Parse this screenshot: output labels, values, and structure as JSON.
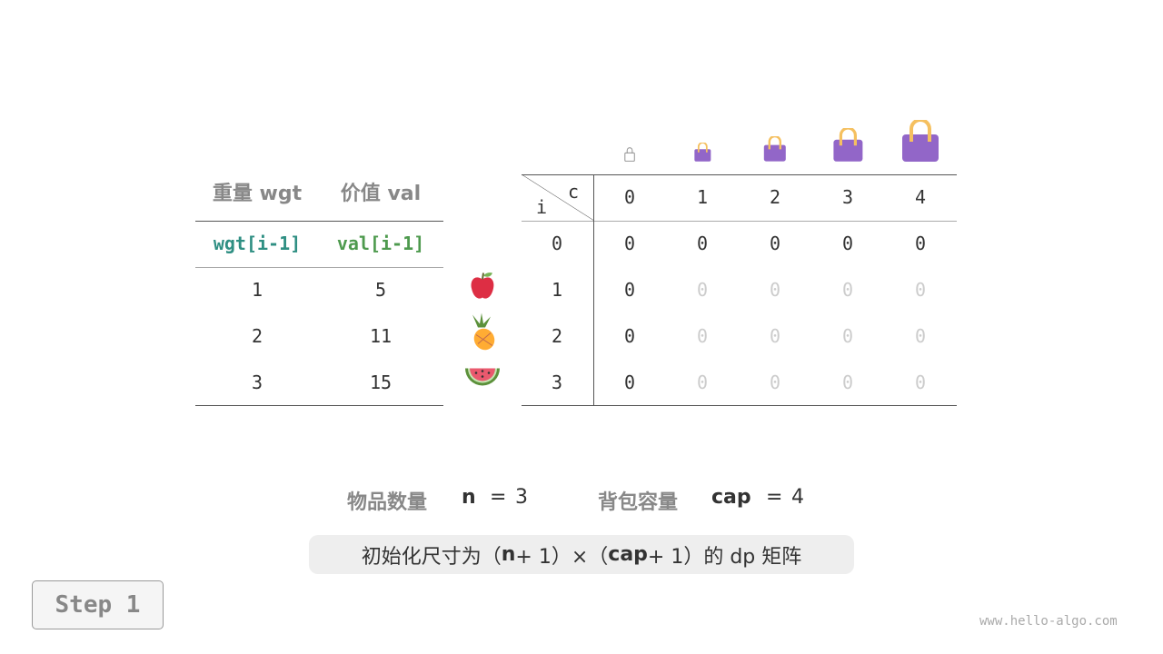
{
  "items_table": {
    "headers": [
      "重量 wgt",
      "价值 val"
    ],
    "subheaders": [
      "wgt[i-1]",
      "val[i-1]"
    ],
    "rows": [
      [
        "1",
        "5"
      ],
      [
        "2",
        "11"
      ],
      [
        "3",
        "15"
      ]
    ],
    "item_icons": [
      "apple-icon",
      "pineapple-icon",
      "watermelon-icon"
    ]
  },
  "dp_table": {
    "corner_col": "c",
    "corner_row": "i",
    "col_headers": [
      "0",
      "1",
      "2",
      "3",
      "4"
    ],
    "row_headers": [
      "0",
      "1",
      "2",
      "3"
    ],
    "cells": [
      [
        "0",
        "0",
        "0",
        "0",
        "0"
      ],
      [
        "0",
        "0",
        "0",
        "0",
        "0"
      ],
      [
        "0",
        "0",
        "0",
        "0",
        "0"
      ],
      [
        "0",
        "0",
        "0",
        "0",
        "0"
      ]
    ],
    "bag_icons": [
      "bag-icon-empty",
      "bag-icon",
      "bag-icon",
      "bag-icon",
      "bag-icon"
    ]
  },
  "summary": {
    "n_label": "物品数量",
    "n_var": "n",
    "n_eq": "=",
    "n_val": "3",
    "cap_label": "背包容量",
    "cap_var": "cap",
    "cap_eq": "=",
    "cap_val": "4"
  },
  "note": {
    "p1": "初始化尺寸为（",
    "n": "n",
    "p2": " + 1）×（",
    "cap": "cap",
    "p3": " + 1）的 dp 矩阵"
  },
  "step_label": "Step 1",
  "watermark": "www.hello-algo.com",
  "colors": {
    "bag": "#9266c8",
    "handle": "#f5c060",
    "teal": "#2f8f83",
    "green": "#4e9a4e"
  }
}
